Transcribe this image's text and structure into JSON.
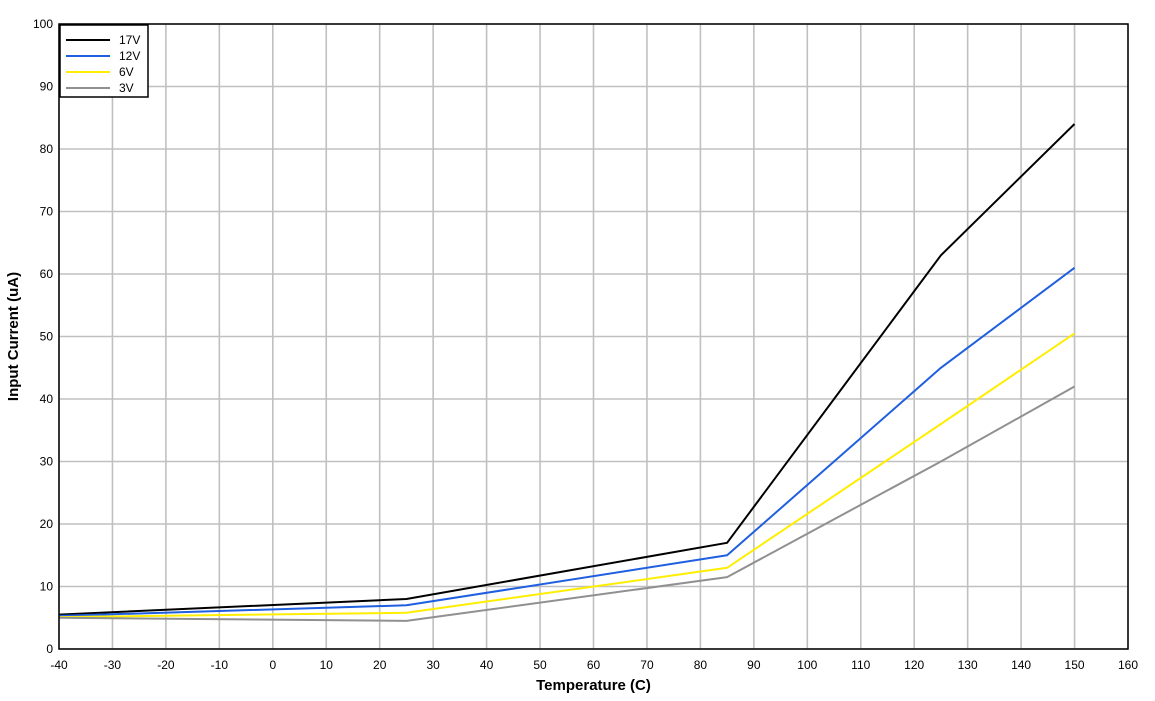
{
  "chart_data": {
    "type": "line",
    "title": "",
    "xlabel": "Temperature (C)",
    "ylabel": "Input Current (uA)",
    "xlim": [
      -40,
      160
    ],
    "ylim": [
      0,
      100
    ],
    "x_ticks": [
      -40,
      -30,
      -20,
      -10,
      0,
      10,
      20,
      30,
      40,
      50,
      60,
      70,
      80,
      90,
      100,
      110,
      120,
      130,
      140,
      150,
      160
    ],
    "y_ticks": [
      0,
      10,
      20,
      30,
      40,
      50,
      60,
      70,
      80,
      90,
      100
    ],
    "grid": true,
    "legend_position": "top-left",
    "x": [
      -40,
      25,
      85,
      125,
      150
    ],
    "series": [
      {
        "name": "17V",
        "color": "#000000",
        "values": [
          5.5,
          8.0,
          17.0,
          63.0,
          84.0
        ]
      },
      {
        "name": "12V",
        "color": "#1f5fe0",
        "values": [
          5.3,
          7.0,
          15.0,
          45.0,
          61.0
        ]
      },
      {
        "name": "6V",
        "color": "#ffee00",
        "values": [
          5.1,
          5.8,
          13.0,
          36.0,
          50.5
        ]
      },
      {
        "name": "3V",
        "color": "#909090",
        "values": [
          5.0,
          4.5,
          11.5,
          30.0,
          42.0
        ]
      }
    ]
  }
}
